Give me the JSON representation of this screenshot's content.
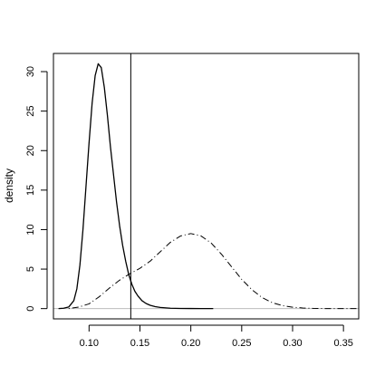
{
  "chart_data": {
    "type": "line",
    "title": "",
    "xlabel": "",
    "ylabel": "density",
    "xlim": [
      0.065,
      0.365
    ],
    "ylim": [
      -1.3,
      32.3
    ],
    "x_ticks": [
      0.1,
      0.15,
      0.2,
      0.25,
      0.3,
      0.35
    ],
    "x_tick_labels": [
      "0.10",
      "0.15",
      "0.20",
      "0.25",
      "0.30",
      "0.35"
    ],
    "y_ticks": [
      0,
      5,
      10,
      15,
      20,
      25,
      30
    ],
    "y_tick_labels": [
      "0",
      "5",
      "10",
      "15",
      "20",
      "25",
      "30"
    ],
    "grid": false,
    "legend": "none",
    "baseline_y": 0,
    "baseline_color": "#bbbbbb",
    "vline_x": 0.141,
    "series": [
      {
        "style": "solid",
        "color": "#000000",
        "x": [
          0.07,
          0.075,
          0.08,
          0.085,
          0.088,
          0.091,
          0.094,
          0.097,
          0.1,
          0.103,
          0.106,
          0.109,
          0.112,
          0.115,
          0.118,
          0.121,
          0.124,
          0.127,
          0.13,
          0.133,
          0.136,
          0.139,
          0.142,
          0.145,
          0.148,
          0.152,
          0.156,
          0.16,
          0.165,
          0.17,
          0.18,
          0.19,
          0.2,
          0.21,
          0.222
        ],
        "y": [
          0.0,
          0.05,
          0.2,
          1.0,
          2.5,
          5.5,
          10.0,
          15.5,
          21.0,
          26.0,
          29.5,
          31.0,
          30.5,
          28.0,
          24.5,
          20.5,
          17.0,
          13.5,
          10.5,
          8.0,
          6.0,
          4.3,
          3.1,
          2.2,
          1.6,
          1.0,
          0.65,
          0.42,
          0.25,
          0.15,
          0.05,
          0.02,
          0.01,
          0.0,
          0.0
        ]
      },
      {
        "style": "dotdash",
        "color": "#000000",
        "x": [
          0.08,
          0.09,
          0.1,
          0.11,
          0.12,
          0.13,
          0.14,
          0.15,
          0.16,
          0.17,
          0.18,
          0.19,
          0.2,
          0.21,
          0.22,
          0.23,
          0.24,
          0.25,
          0.26,
          0.27,
          0.28,
          0.29,
          0.3,
          0.31,
          0.32,
          0.33,
          0.34,
          0.35,
          0.365
        ],
        "y": [
          0.0,
          0.2,
          0.6,
          1.5,
          2.6,
          3.6,
          4.4,
          5.1,
          6.0,
          7.2,
          8.4,
          9.2,
          9.5,
          9.2,
          8.3,
          6.9,
          5.3,
          3.7,
          2.4,
          1.4,
          0.75,
          0.38,
          0.18,
          0.08,
          0.03,
          0.01,
          0.0,
          0.0,
          0.0
        ]
      }
    ]
  }
}
